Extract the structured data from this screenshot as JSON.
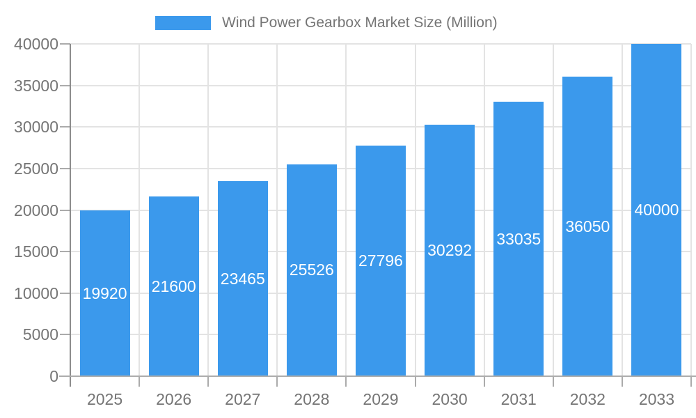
{
  "legend": {
    "label": "Wind Power Gearbox Market Size (Million)",
    "position": "top"
  },
  "colors": {
    "bar": "#3B99EC",
    "grid": "#E3E3E3",
    "axis_y": "#8C8C8C",
    "axis_x": "#ADADAD",
    "tick": "#ABABAB",
    "text": "#757575",
    "bar_label": "#FFFFFF",
    "background": "#FFFFFF"
  },
  "chart_data": {
    "type": "bar",
    "title": "Wind Power Gearbox Market Size (Million)",
    "categories": [
      "2025",
      "2026",
      "2027",
      "2028",
      "2029",
      "2030",
      "2031",
      "2032",
      "2033"
    ],
    "series": [
      {
        "name": "Wind Power Gearbox Market Size (Million)",
        "values": [
          19920,
          21600,
          23465,
          25526,
          27796,
          30292,
          33035,
          36050,
          40000
        ]
      }
    ],
    "values": [
      19920,
      21600,
      23465,
      25526,
      27796,
      30292,
      33035,
      36050,
      40000
    ],
    "value_labels": [
      "19920",
      "21600",
      "23465",
      "25526",
      "27796",
      "30292",
      "33035",
      "36050",
      "40000"
    ],
    "xlabel": "",
    "ylabel": "",
    "ylim": [
      0,
      40000
    ],
    "yticks": [
      0,
      5000,
      10000,
      15000,
      20000,
      25000,
      30000,
      35000,
      40000
    ],
    "ytick_labels": [
      "0",
      "5000",
      "10000",
      "15000",
      "20000",
      "25000",
      "30000",
      "35000",
      "40000"
    ],
    "grid": true,
    "legend_position": "top",
    "bar_value_labels_inside": true
  }
}
